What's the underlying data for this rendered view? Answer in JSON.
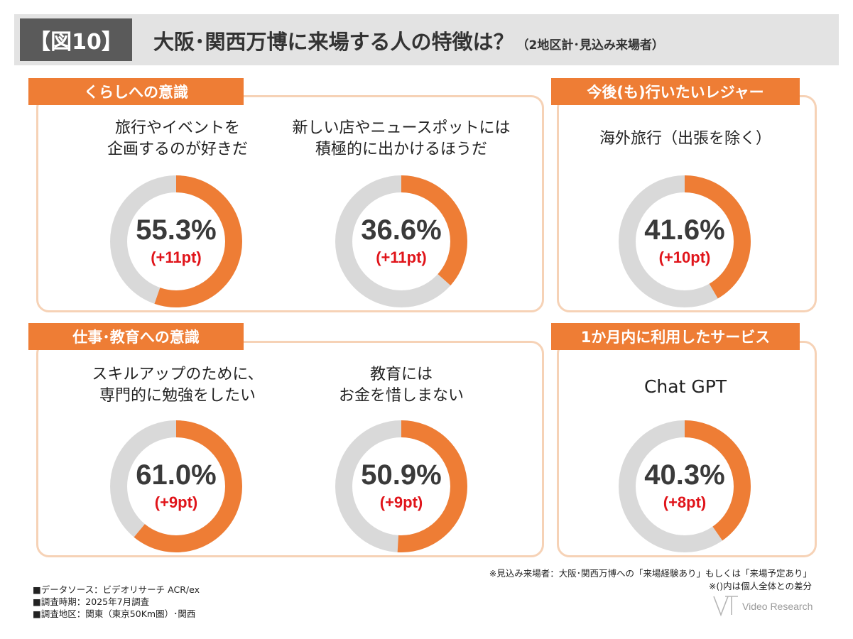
{
  "header": {
    "fig_label": "【図10】",
    "title": "大阪･関西万博に来場する人の特徴は？",
    "subtitle": "（2地区計･見込み来場者）"
  },
  "sections": {
    "kurashi": "くらしへの意識",
    "leisure": "今後(も)行いたいレジャー",
    "work": "仕事･教育への意識",
    "service": "1か月内に利用したサービス"
  },
  "questions": {
    "q1": [
      "旅行やイベントを",
      "企画するのが好きだ"
    ],
    "q2": [
      "新しい店やニュースポットには",
      "積極的に出かけるほうだ"
    ],
    "q3": [
      "海外旅行（出張を除く）"
    ],
    "q4": [
      "スキルアップのために、",
      "専門的に勉強をしたい"
    ],
    "q5": [
      "教育には",
      "お金を惜しまない"
    ],
    "q6": [
      "Chat GPT"
    ]
  },
  "chart_data": [
    {
      "type": "pie",
      "variant": "donut",
      "label": "旅行やイベントを企画するのが好きだ",
      "value": 55.3,
      "value_text": "55.3%",
      "diff_text": "(+11pt)",
      "diff": 11
    },
    {
      "type": "pie",
      "variant": "donut",
      "label": "新しい店やニュースポットには積極的に出かけるほうだ",
      "value": 36.6,
      "value_text": "36.6%",
      "diff_text": "(+11pt)",
      "diff": 11
    },
    {
      "type": "pie",
      "variant": "donut",
      "label": "海外旅行（出張を除く）",
      "value": 41.6,
      "value_text": "41.6%",
      "diff_text": "(+10pt)",
      "diff": 10
    },
    {
      "type": "pie",
      "variant": "donut",
      "label": "スキルアップのために、専門的に勉強をしたい",
      "value": 61.0,
      "value_text": "61.0%",
      "diff_text": "(+9pt)",
      "diff": 9
    },
    {
      "type": "pie",
      "variant": "donut",
      "label": "教育にはお金を惜しまない",
      "value": 50.9,
      "value_text": "50.9%",
      "diff_text": "(+9pt)",
      "diff": 9
    },
    {
      "type": "pie",
      "variant": "donut",
      "label": "Chat GPT",
      "value": 40.3,
      "value_text": "40.3%",
      "diff_text": "(+8pt)",
      "diff": 8
    }
  ],
  "colors": {
    "accent": "#ee7d35",
    "track": "#d9d9d9",
    "diff": "#e0141a",
    "panel_border": "#f6d2b6"
  },
  "notes": {
    "note1": "※見込み来場者：大阪･関西万博への「来場経験あり」もしくは「来場予定あり」",
    "note2": "※()内は個人全体との差分"
  },
  "meta": {
    "source": "■データソース：ビデオリサーチ ACR/ex",
    "period": "■調査時期：2025年7月調査",
    "area": "■調査地区：関東（東京50Km圏）･関西"
  },
  "logo_text": "Video Research"
}
